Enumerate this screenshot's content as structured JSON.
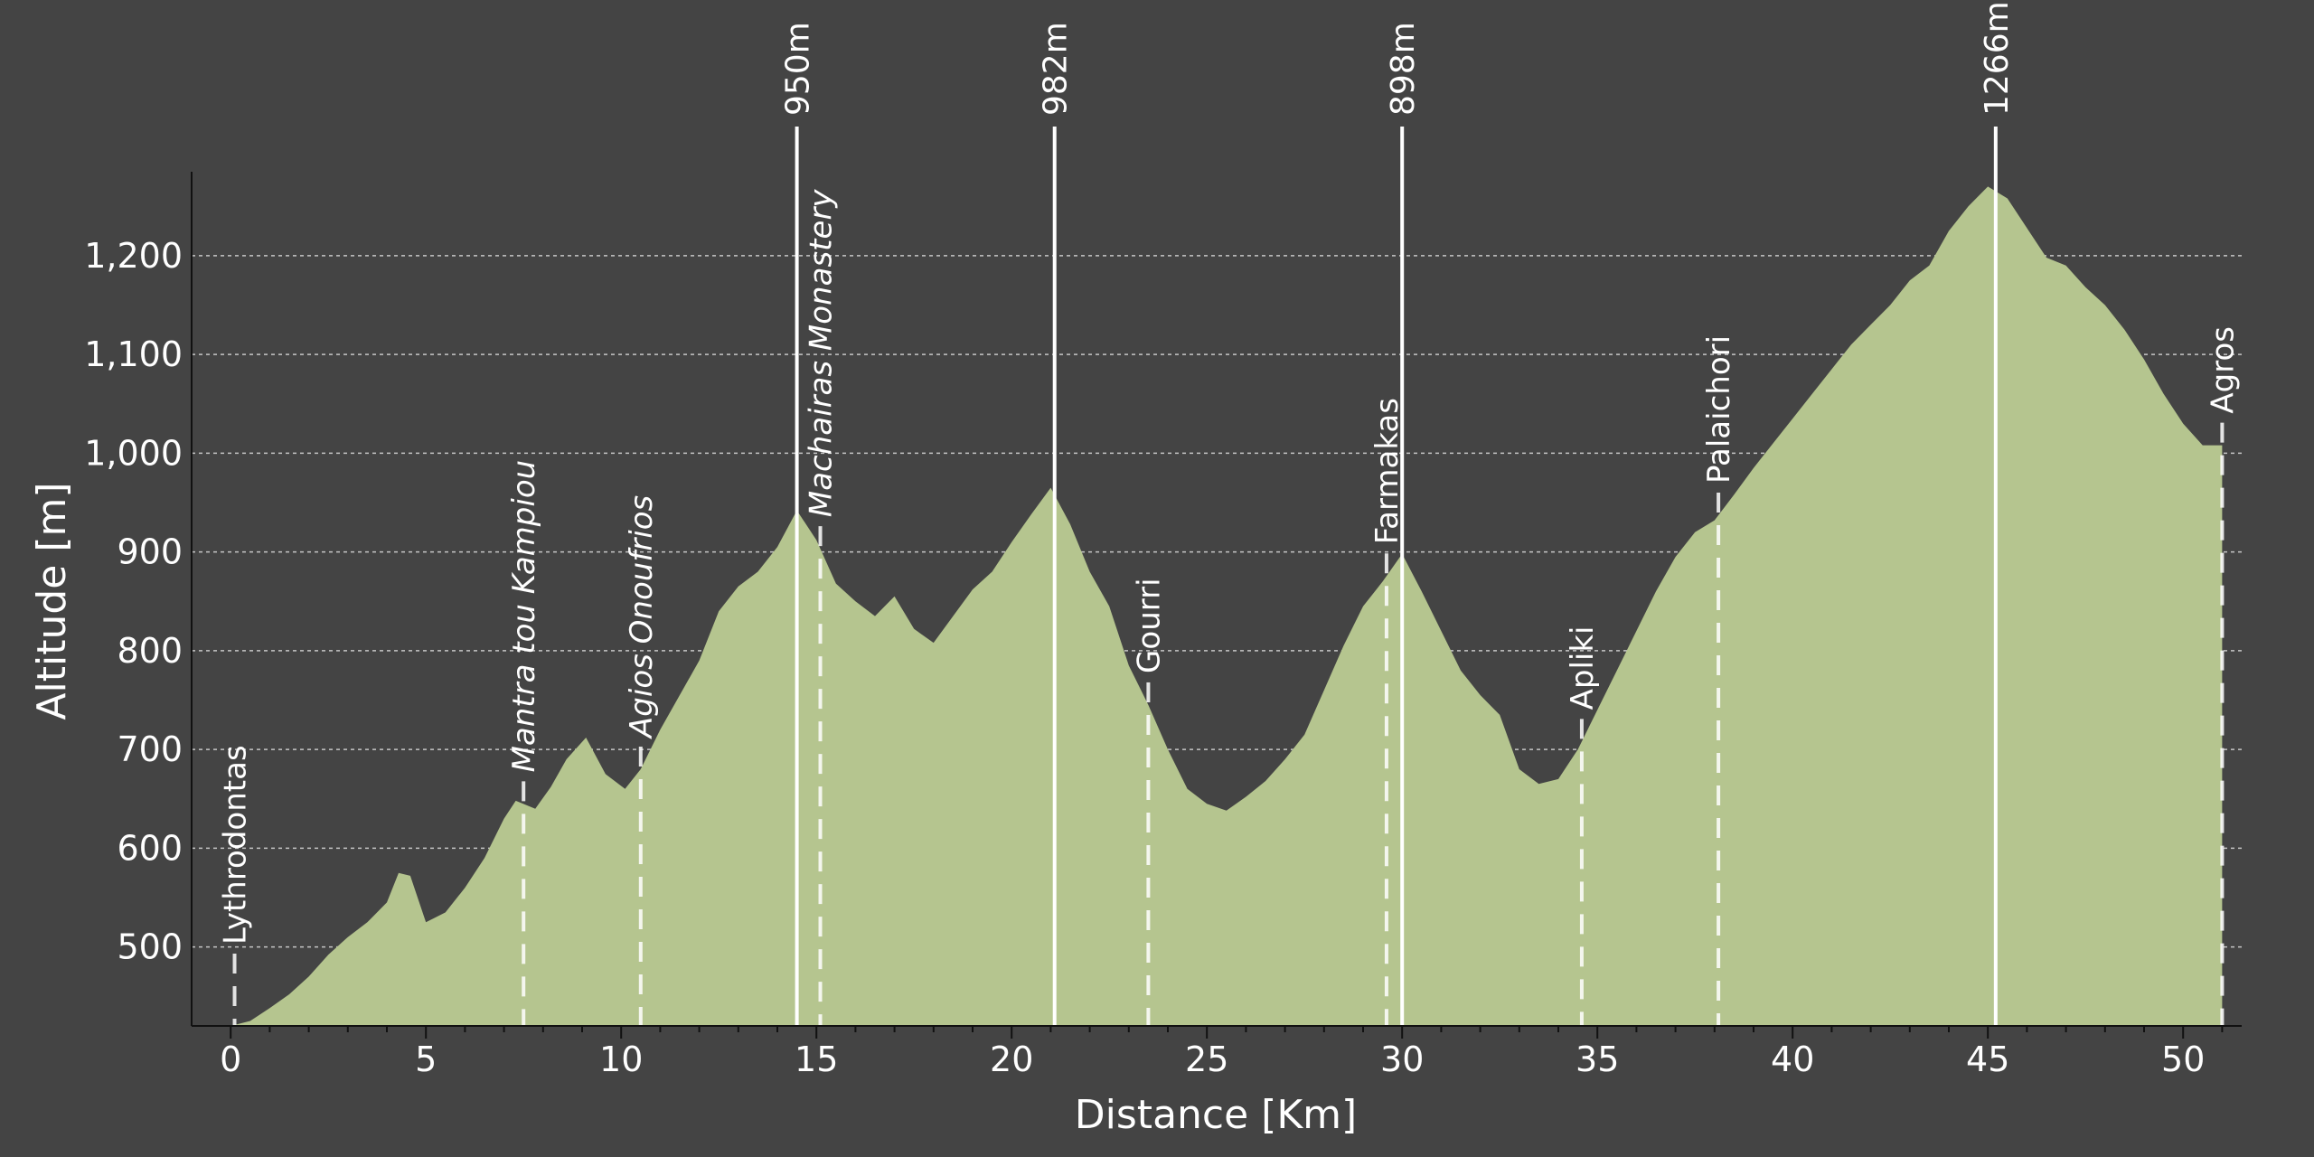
{
  "chart_data": {
    "type": "area",
    "xlabel": "Distance [Km]",
    "ylabel": "Altitude [m]",
    "xlim": [
      -1,
      51.5
    ],
    "ylim": [
      420,
      1285
    ],
    "xticks": [
      0,
      5,
      10,
      15,
      20,
      25,
      30,
      35,
      40,
      45,
      50
    ],
    "xtick_labels": [
      "0",
      "5",
      "10",
      "15",
      "20",
      "25",
      "30",
      "35",
      "40",
      "45",
      "50"
    ],
    "yticks": [
      500,
      600,
      700,
      800,
      900,
      1000,
      1100,
      1200
    ],
    "ytick_labels": [
      "500",
      "600",
      "700",
      "800",
      "900",
      "1,000",
      "1,100",
      "1,200"
    ],
    "grid": true,
    "colors": {
      "background": "#444444",
      "fill": "#b5c58f",
      "grid": "#dddddd",
      "lines": "#ffffff"
    },
    "profile": {
      "x": [
        0,
        0.5,
        1,
        1.5,
        2,
        2.5,
        3,
        3.5,
        4,
        4.3,
        4.6,
        5,
        5.5,
        6,
        6.5,
        7,
        7.3,
        7.8,
        8.2,
        8.6,
        9.1,
        9.6,
        10.1,
        10.5,
        11,
        11.5,
        12,
        12.5,
        13,
        13.5,
        14,
        14.5,
        15,
        15.5,
        16,
        16.5,
        17,
        17.5,
        18,
        18.5,
        19,
        19.5,
        20,
        20.5,
        21,
        21.5,
        22,
        22.5,
        23,
        23.5,
        24,
        24.5,
        25,
        25.5,
        26,
        26.5,
        27,
        27.5,
        28,
        28.5,
        29,
        29.5,
        30,
        30.5,
        31,
        31.5,
        32,
        32.5,
        33,
        33.5,
        34,
        34.5,
        35,
        35.5,
        36,
        36.5,
        37,
        37.5,
        38,
        38.5,
        39,
        39.5,
        40,
        40.5,
        41,
        41.5,
        42,
        42.5,
        43,
        43.5,
        44,
        44.5,
        45,
        45.5,
        46,
        46.5,
        47,
        47.5,
        48,
        48.5,
        49,
        49.5,
        50,
        50.5,
        51
      ],
      "y": [
        420,
        425,
        438,
        452,
        470,
        492,
        510,
        525,
        545,
        575,
        572,
        525,
        535,
        560,
        590,
        630,
        648,
        640,
        662,
        690,
        712,
        675,
        660,
        680,
        720,
        755,
        790,
        840,
        865,
        880,
        905,
        942,
        912,
        868,
        850,
        835,
        855,
        822,
        808,
        835,
        862,
        880,
        910,
        938,
        965,
        928,
        880,
        845,
        785,
        745,
        700,
        660,
        645,
        638,
        652,
        668,
        690,
        715,
        760,
        805,
        845,
        870,
        898,
        860,
        820,
        780,
        755,
        735,
        680,
        665,
        670,
        700,
        740,
        780,
        820,
        860,
        895,
        920,
        932,
        958,
        985,
        1010,
        1035,
        1060,
        1085,
        1110,
        1130,
        1150,
        1175,
        1190,
        1225,
        1250,
        1270,
        1258,
        1228,
        1198,
        1190,
        1168,
        1150,
        1125,
        1095,
        1060,
        1030,
        1008,
        1008
      ]
    },
    "waypoints": [
      {
        "name": "Lythrodontas",
        "x": 0.1,
        "style": "normal"
      },
      {
        "name": "Mantra tou Kampiou",
        "x": 7.5,
        "style": "italic"
      },
      {
        "name": "Agios Onoufrios",
        "x": 10.5,
        "style": "italic"
      },
      {
        "name": "Machairas Monastery",
        "x": 15.1,
        "style": "italic"
      },
      {
        "name": "Gourri",
        "x": 23.5,
        "style": "normal"
      },
      {
        "name": "Farmakas",
        "x": 29.6,
        "style": "normal"
      },
      {
        "name": "Apliki",
        "x": 34.6,
        "style": "normal"
      },
      {
        "name": "Palaichori",
        "x": 38.1,
        "style": "normal"
      },
      {
        "name": "Agros",
        "x": 51.0,
        "style": "normal"
      }
    ],
    "peaks": [
      {
        "label": "950m",
        "x": 14.5
      },
      {
        "label": "982m",
        "x": 21.1
      },
      {
        "label": "898m",
        "x": 30.0
      },
      {
        "label": "1266m",
        "x": 45.2
      }
    ]
  }
}
